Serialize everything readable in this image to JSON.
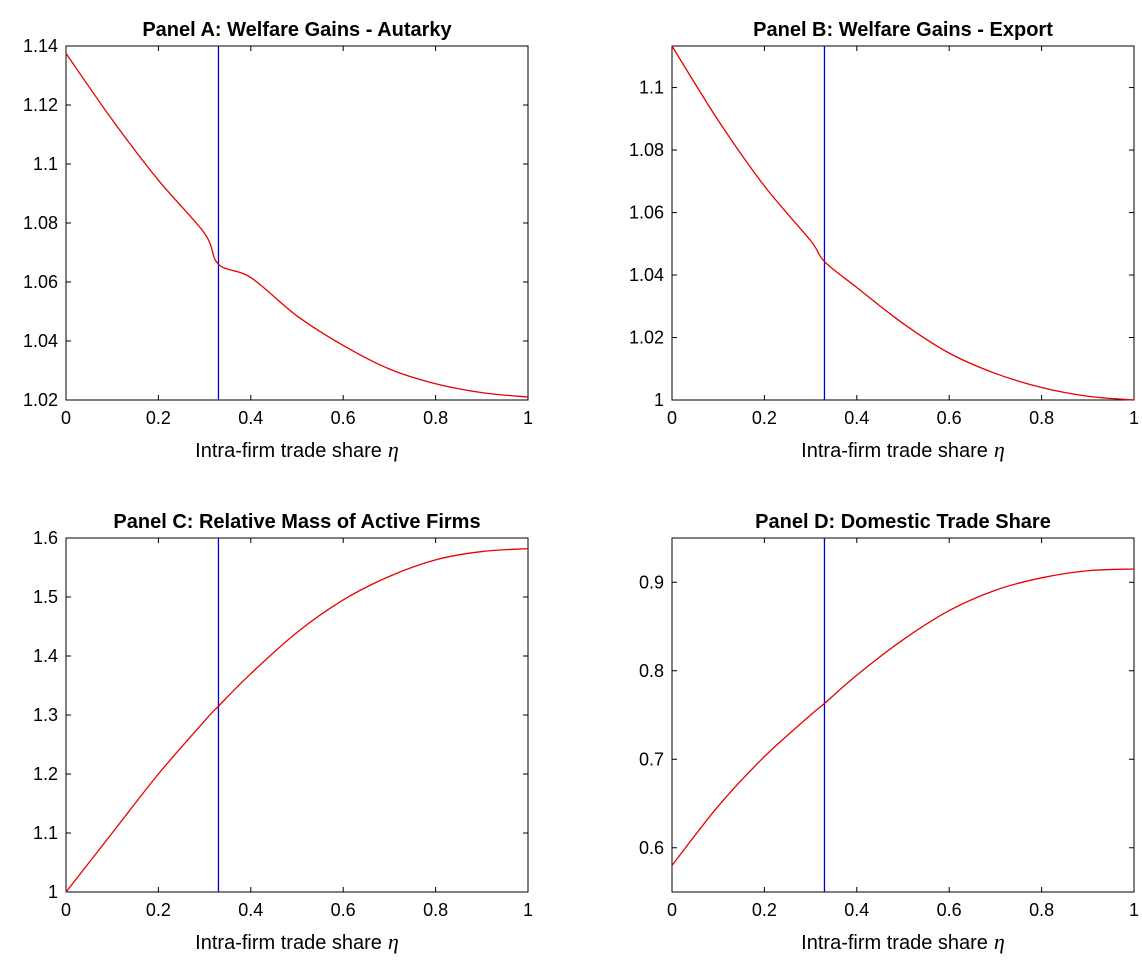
{
  "chart_data": [
    {
      "type": "line",
      "title": "Panel A: Welfare Gains - Autarky",
      "xlabel": "Intra-firm trade share",
      "xlabel_symbol": "η",
      "ylabel": "",
      "xlim": [
        0,
        1
      ],
      "ylim": [
        1.02,
        1.14
      ],
      "xticks": [
        "0",
        "0.2",
        "0.4",
        "0.6",
        "0.8",
        "1"
      ],
      "yticks": [
        "1.02",
        "1.04",
        "1.06",
        "1.08",
        "1.1",
        "1.12",
        "1.14"
      ],
      "grid": false,
      "vline_x": 0.33,
      "colors": {
        "curve": "#e60000",
        "vline": "#0000cc",
        "axis": "#000000"
      },
      "series": [
        {
          "x": [
            0,
            0.1,
            0.2,
            0.3,
            0.33,
            0.4,
            0.5,
            0.6,
            0.7,
            0.8,
            0.9,
            1.0
          ],
          "values": [
            1.1375,
            1.115,
            1.0945,
            1.0765,
            1.066,
            1.0615,
            1.0485,
            1.0385,
            1.0305,
            1.0255,
            1.0225,
            1.021
          ]
        }
      ]
    },
    {
      "type": "line",
      "title": "Panel B: Welfare Gains - Export",
      "xlabel": "Intra-firm trade share",
      "xlabel_symbol": "η",
      "ylabel": "",
      "xlim": [
        0,
        1
      ],
      "ylim": [
        1.0,
        1.1133
      ],
      "xticks": [
        "0",
        "0.2",
        "0.4",
        "0.6",
        "0.8",
        "1"
      ],
      "yticks": [
        "1",
        "1.02",
        "1.04",
        "1.06",
        "1.08",
        "1.1"
      ],
      "grid": false,
      "vline_x": 0.33,
      "colors": {
        "curve": "#e60000",
        "vline": "#0000cc",
        "axis": "#000000"
      },
      "series": [
        {
          "x": [
            0,
            0.1,
            0.2,
            0.3,
            0.33,
            0.4,
            0.5,
            0.6,
            0.7,
            0.8,
            0.9,
            1.0
          ],
          "values": [
            1.1133,
            1.0895,
            1.0685,
            1.051,
            1.0443,
            1.036,
            1.0245,
            1.015,
            1.0085,
            1.004,
            1.0012,
            1.0
          ]
        }
      ]
    },
    {
      "type": "line",
      "title": "Panel C: Relative Mass of Active Firms",
      "xlabel": "Intra-firm trade share",
      "xlabel_symbol": "η",
      "ylabel": "",
      "xlim": [
        0,
        1
      ],
      "ylim": [
        1.0,
        1.6
      ],
      "xticks": [
        "0",
        "0.2",
        "0.4",
        "0.6",
        "0.8",
        "1"
      ],
      "yticks": [
        "1",
        "1.1",
        "1.2",
        "1.3",
        "1.4",
        "1.5",
        "1.6"
      ],
      "grid": false,
      "vline_x": 0.33,
      "colors": {
        "curve": "#e60000",
        "vline": "#0000cc",
        "axis": "#000000"
      },
      "series": [
        {
          "x": [
            0,
            0.1,
            0.2,
            0.3,
            0.33,
            0.4,
            0.5,
            0.6,
            0.7,
            0.8,
            0.9,
            1.0
          ],
          "values": [
            1.0,
            1.1,
            1.2,
            1.29,
            1.315,
            1.37,
            1.44,
            1.495,
            1.535,
            1.563,
            1.577,
            1.582
          ]
        }
      ]
    },
    {
      "type": "line",
      "title": "Panel D: Domestic Trade Share",
      "xlabel": "Intra-firm trade share",
      "xlabel_symbol": "η",
      "ylabel": "",
      "xlim": [
        0,
        1
      ],
      "ylim": [
        0.55,
        0.95
      ],
      "xticks": [
        "0",
        "0.2",
        "0.4",
        "0.6",
        "0.8",
        "1"
      ],
      "yticks": [
        "0.6",
        "0.7",
        "0.8",
        "0.9"
      ],
      "grid": false,
      "vline_x": 0.33,
      "colors": {
        "curve": "#e60000",
        "vline": "#0000cc",
        "axis": "#000000"
      },
      "series": [
        {
          "x": [
            0,
            0.1,
            0.2,
            0.3,
            0.33,
            0.4,
            0.5,
            0.6,
            0.7,
            0.8,
            0.9,
            1.0
          ],
          "values": [
            0.58,
            0.647,
            0.703,
            0.75,
            0.763,
            0.795,
            0.835,
            0.868,
            0.891,
            0.905,
            0.913,
            0.915
          ]
        }
      ]
    }
  ]
}
